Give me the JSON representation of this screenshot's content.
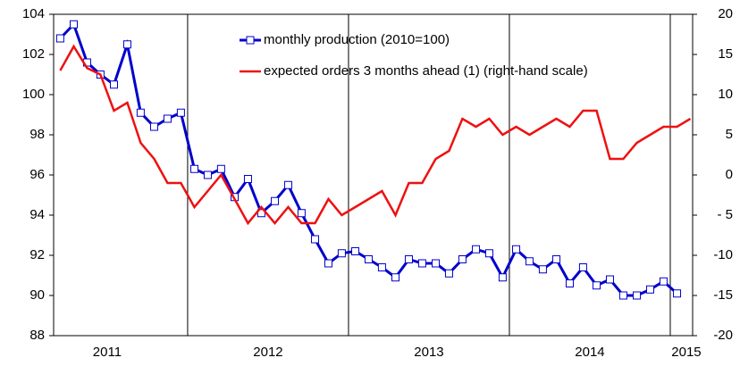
{
  "chart_data": {
    "type": "line",
    "x": [
      2011.208,
      2011.292,
      2011.375,
      2011.458,
      2011.542,
      2011.625,
      2011.708,
      2011.792,
      2011.875,
      2011.958,
      2012.042,
      2012.125,
      2012.208,
      2012.292,
      2012.375,
      2012.458,
      2012.542,
      2012.625,
      2012.708,
      2012.792,
      2012.875,
      2012.958,
      2013.042,
      2013.125,
      2013.208,
      2013.292,
      2013.375,
      2013.458,
      2013.542,
      2013.625,
      2013.708,
      2013.792,
      2013.875,
      2013.958,
      2014.042,
      2014.125,
      2014.208,
      2014.292,
      2014.375,
      2014.458,
      2014.542,
      2014.625,
      2014.708,
      2014.792,
      2014.875,
      2014.958,
      2015.042,
      2015.125
    ],
    "series": [
      {
        "name": "monthly production (2010=100)",
        "color": "#0000cc",
        "marker": "square",
        "values": [
          102.8,
          103.5,
          101.6,
          101.0,
          100.5,
          102.5,
          99.1,
          98.4,
          98.8,
          99.1,
          96.3,
          96.0,
          96.3,
          94.9,
          95.8,
          94.1,
          94.7,
          95.5,
          94.1,
          92.8,
          91.6,
          92.1,
          92.2,
          91.8,
          91.4,
          90.9,
          91.8,
          91.6,
          91.6,
          91.1,
          91.8,
          92.3,
          92.1,
          90.9,
          92.3,
          91.7,
          91.3,
          91.8,
          90.6,
          91.4,
          90.5,
          90.8,
          90.0,
          90.0,
          90.3,
          90.7,
          90.1,
          null
        ]
      },
      {
        "name": "expected orders 3 months ahead (1) (right-hand scale)",
        "color": "#ee1111",
        "axis": "y2",
        "values": [
          13,
          16,
          13.3,
          12.5,
          8,
          9,
          4,
          2,
          -1,
          -1,
          -4,
          -2,
          0,
          -3,
          -6,
          -4,
          -6,
          -4,
          -6,
          -6,
          -3,
          -5,
          -4,
          -3,
          -2,
          -5,
          -1,
          -1,
          2,
          3,
          7,
          6,
          7,
          5,
          6,
          5,
          6,
          7,
          6,
          8,
          8,
          2,
          2,
          4,
          5,
          6,
          6,
          7
        ]
      }
    ],
    "xlim": [
      2011.167,
      2015.139
    ],
    "xticks": [
      {
        "value": 2011.5,
        "label": "2011"
      },
      {
        "value": 2012.5,
        "label": "2012"
      },
      {
        "value": 2013.5,
        "label": "2013"
      },
      {
        "value": 2014.5,
        "label": "2014"
      },
      {
        "value": 2015.1,
        "label": "2015"
      }
    ],
    "vlines": [
      2012,
      2013,
      2014,
      2015
    ],
    "ylim": [
      88,
      104
    ],
    "yticks": [
      88,
      90,
      92,
      94,
      96,
      98,
      100,
      102,
      104
    ],
    "y2lim": [
      -20,
      20
    ],
    "y2ticks": [
      {
        "value": -20,
        "label": "-20"
      },
      {
        "value": -15,
        "label": "-15"
      },
      {
        "value": -10,
        "label": "-10"
      },
      {
        "value": -5,
        "label": "- 5"
      },
      0,
      5,
      10,
      15,
      20
    ]
  }
}
